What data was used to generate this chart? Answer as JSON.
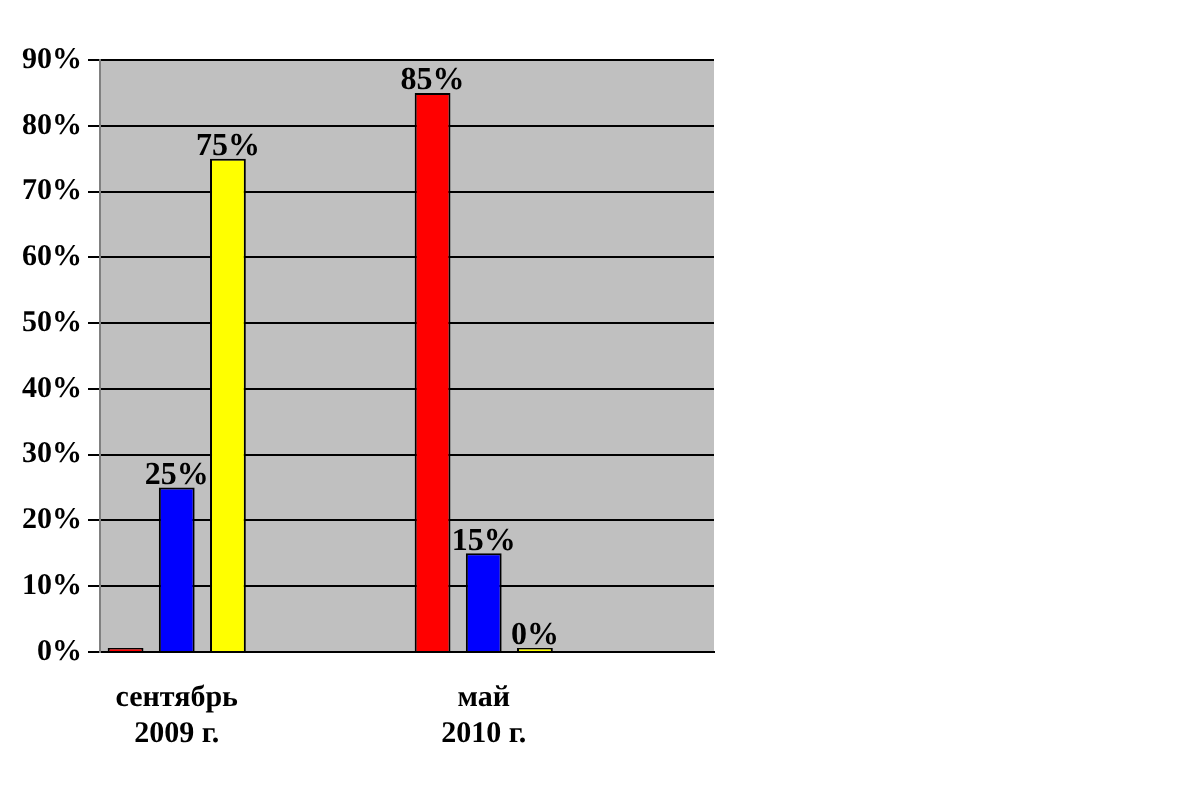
{
  "chart_data": {
    "type": "bar",
    "categories": [
      "сентябрь 2009 г.",
      null,
      "май 2010 г.",
      null
    ],
    "series": [
      {
        "color": "#ff0000",
        "values": [
          0,
          null,
          85,
          null
        ],
        "value_labels": [
          null,
          null,
          "85%",
          null
        ]
      },
      {
        "color": "#0000ff",
        "values": [
          25,
          null,
          15,
          null
        ],
        "value_labels": [
          "25%",
          null,
          "15%",
          null
        ]
      },
      {
        "color": "#ffff00",
        "values": [
          75,
          null,
          0,
          null
        ],
        "value_labels": [
          "75%",
          null,
          "0%",
          null
        ]
      }
    ],
    "ylim": [
      0,
      90
    ],
    "yticks": [
      {
        "value": 0,
        "label": "0%"
      },
      {
        "value": 10,
        "label": "10%"
      },
      {
        "value": 20,
        "label": "20%"
      },
      {
        "value": 30,
        "label": "30%"
      },
      {
        "value": 40,
        "label": "40%"
      },
      {
        "value": 50,
        "label": "50%"
      },
      {
        "value": 60,
        "label": "60%"
      },
      {
        "value": 70,
        "label": "70%"
      },
      {
        "value": 80,
        "label": "80%"
      },
      {
        "value": 90,
        "label": "90%"
      }
    ],
    "grid": "y",
    "legend": false
  }
}
